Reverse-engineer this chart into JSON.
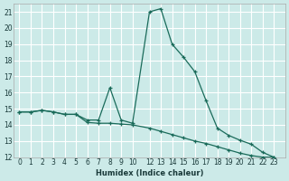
{
  "xlabel": "Humidex (Indice chaleur)",
  "xlim": [
    -0.5,
    23.5
  ],
  "ylim": [
    12,
    21.5
  ],
  "yticks": [
    12,
    13,
    14,
    15,
    16,
    17,
    18,
    19,
    20,
    21
  ],
  "xtick_positions": [
    0,
    1,
    2,
    3,
    4,
    5,
    6,
    7,
    8,
    9,
    10,
    11.5,
    12.5,
    13.5,
    14.5,
    15.5,
    16.5,
    17.5,
    18.5,
    19.5,
    20.5,
    21.5,
    22.5
  ],
  "xtick_labels": [
    "0",
    "1",
    "2",
    "3",
    "4",
    "5",
    "6",
    "7",
    "8",
    "9",
    "10",
    "12",
    "13",
    "14",
    "15",
    "16",
    "17",
    "18",
    "19",
    "20",
    "21",
    "22",
    "23"
  ],
  "background_color": "#cceae8",
  "grid_color": "#ffffff",
  "line_color": "#1a6b5a",
  "series1_x": [
    0,
    1,
    2,
    3,
    4,
    5,
    6,
    7,
    8,
    9,
    10,
    11.5,
    12.5,
    13.5,
    14.5,
    15.5,
    16.5,
    17.5,
    18.5,
    19.5,
    20.5,
    21.5,
    22.5
  ],
  "series1_y": [
    14.8,
    14.8,
    14.9,
    14.8,
    14.65,
    14.65,
    14.15,
    14.1,
    14.1,
    14.05,
    14.0,
    13.8,
    13.6,
    13.4,
    13.2,
    13.0,
    12.85,
    12.65,
    12.45,
    12.25,
    12.1,
    12.0,
    12.0
  ],
  "series2_x": [
    0,
    1,
    2,
    3,
    4,
    5,
    6,
    7,
    8,
    9,
    10,
    11.5,
    12.5,
    13.5,
    14.5,
    15.5,
    16.5,
    17.5,
    18.5,
    19.5,
    20.5,
    21.5,
    22.5
  ],
  "series2_y": [
    14.8,
    14.8,
    14.9,
    14.8,
    14.65,
    14.65,
    14.3,
    14.3,
    16.3,
    14.3,
    14.1,
    21.0,
    21.2,
    19.0,
    18.2,
    17.3,
    15.5,
    13.8,
    13.35,
    13.05,
    12.8,
    12.3,
    12.0
  ]
}
